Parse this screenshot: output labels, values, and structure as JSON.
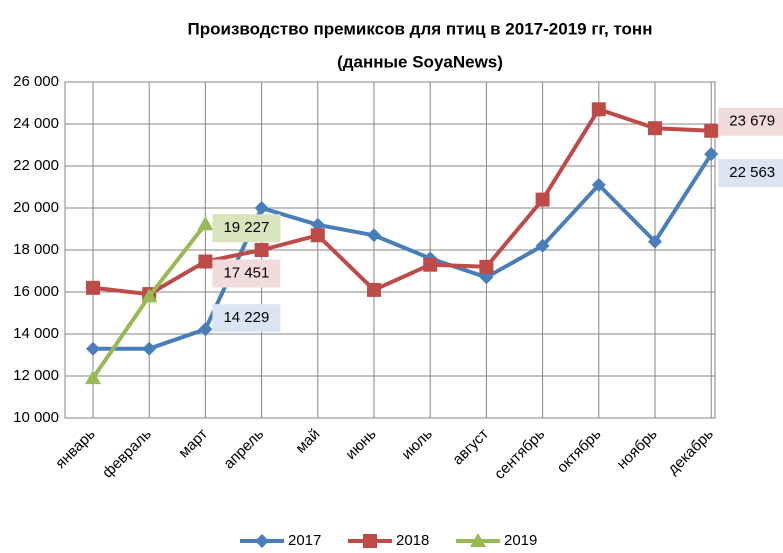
{
  "chart_data": {
    "type": "line",
    "title": "Производство премиксов для птиц в 2017-2019 гг, тонн",
    "subtitle": "(данные SoyaNews)",
    "categories": [
      "январь",
      "февраль",
      "март",
      "апрель",
      "май",
      "июнь",
      "июль",
      "август",
      "сентябрь",
      "октябрь",
      "ноябрь",
      "декабрь"
    ],
    "series": [
      {
        "name": "2017",
        "color": "#4a7ebb",
        "marker": "diamond",
        "values": [
          13300,
          13300,
          14229,
          20000,
          19200,
          18700,
          17600,
          16700,
          18200,
          21100,
          18400,
          22563
        ],
        "value_labels": [
          null,
          null,
          "14 229",
          null,
          null,
          null,
          null,
          null,
          null,
          null,
          null,
          "22 563"
        ],
        "label_color": "#dbe5f1"
      },
      {
        "name": "2018",
        "color": "#be4b48",
        "marker": "square",
        "values": [
          16200,
          15900,
          17451,
          18000,
          18700,
          16100,
          17300,
          17200,
          20400,
          24700,
          23800,
          23679
        ],
        "value_labels": [
          null,
          null,
          "17 451",
          null,
          null,
          null,
          null,
          null,
          null,
          null,
          null,
          "23 679"
        ],
        "label_color": "#f2dcdb"
      },
      {
        "name": "2019",
        "color": "#98b954",
        "marker": "triangle",
        "values": [
          11900,
          15800,
          19227,
          null,
          null,
          null,
          null,
          null,
          null,
          null,
          null,
          null
        ],
        "value_labels": [
          null,
          null,
          "19 227",
          null,
          null,
          null,
          null,
          null,
          null,
          null,
          null,
          null
        ],
        "label_color": "#d7e4bc"
      }
    ],
    "ylim": [
      10000,
      26000
    ],
    "yticks": [
      {
        "value": 10000,
        "label": "10 000"
      },
      {
        "value": 12000,
        "label": "12 000"
      },
      {
        "value": 14000,
        "label": "14 000"
      },
      {
        "value": 16000,
        "label": "16 000"
      },
      {
        "value": 18000,
        "label": "18 000"
      },
      {
        "value": 20000,
        "label": "20 000"
      },
      {
        "value": 22000,
        "label": "22 000"
      },
      {
        "value": 24000,
        "label": "24 000"
      },
      {
        "value": 26000,
        "label": "26 000"
      }
    ],
    "grid": true,
    "legend": "bottom"
  }
}
